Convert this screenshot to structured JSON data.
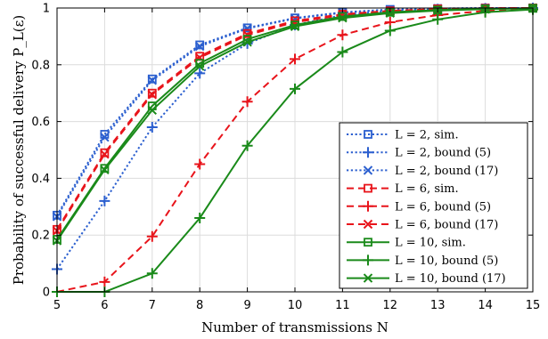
{
  "chart_data": {
    "type": "line",
    "xlabel": "Number of transmissions N",
    "ylabel": "Probability of successful delivery P_L(ε)",
    "xlim": [
      5,
      15
    ],
    "ylim": [
      0,
      1
    ],
    "x_ticks": [
      "5",
      "6",
      "7",
      "8",
      "9",
      "10",
      "11",
      "12",
      "13",
      "14",
      "15"
    ],
    "y_ticks": [
      "0",
      "0.2",
      "0.4",
      "0.6",
      "0.8",
      "1"
    ],
    "grid": true,
    "legend_position": "bottom-right",
    "x": [
      5,
      6,
      7,
      8,
      9,
      10,
      11,
      12,
      13,
      14,
      15
    ],
    "series": [
      {
        "name": "L = 2, sim.",
        "color": "#2b5fcf",
        "style": "dotted",
        "marker": "square",
        "values": [
          0.27,
          0.555,
          0.75,
          0.87,
          0.93,
          0.965,
          0.985,
          0.995,
          0.998,
          1.0,
          1.0
        ]
      },
      {
        "name": "L = 2, bound (5)",
        "color": "#2b5fcf",
        "style": "dotted",
        "marker": "plus",
        "values": [
          0.08,
          0.32,
          0.58,
          0.77,
          0.875,
          0.94,
          0.975,
          0.99,
          0.996,
          0.999,
          1.0
        ]
      },
      {
        "name": "L = 2, bound (17)",
        "color": "#2b5fcf",
        "style": "dotted",
        "marker": "x",
        "values": [
          0.265,
          0.545,
          0.745,
          0.865,
          0.928,
          0.963,
          0.983,
          0.994,
          0.998,
          1.0,
          1.0
        ]
      },
      {
        "name": "L = 6, sim.",
        "color": "#e8141b",
        "style": "dashed",
        "marker": "square",
        "values": [
          0.22,
          0.49,
          0.7,
          0.83,
          0.91,
          0.955,
          0.978,
          0.99,
          0.997,
          0.999,
          1.0
        ]
      },
      {
        "name": "L = 6, bound (5)",
        "color": "#e8141b",
        "style": "dashed",
        "marker": "plus",
        "values": [
          0.0,
          0.035,
          0.195,
          0.45,
          0.67,
          0.82,
          0.905,
          0.95,
          0.975,
          0.99,
          0.995
        ]
      },
      {
        "name": "L = 6, bound (17)",
        "color": "#e8141b",
        "style": "dashed",
        "marker": "x",
        "values": [
          0.215,
          0.485,
          0.695,
          0.825,
          0.905,
          0.95,
          0.975,
          0.988,
          0.995,
          0.999,
          1.0
        ]
      },
      {
        "name": "L = 10, sim.",
        "color": "#1a8a1a",
        "style": "solid",
        "marker": "square",
        "values": [
          0.185,
          0.435,
          0.655,
          0.805,
          0.89,
          0.94,
          0.97,
          0.985,
          0.993,
          0.997,
          0.999
        ]
      },
      {
        "name": "L = 10, bound (5)",
        "color": "#1a8a1a",
        "style": "solid",
        "marker": "plus",
        "values": [
          0.0,
          0.0,
          0.065,
          0.26,
          0.515,
          0.715,
          0.845,
          0.92,
          0.96,
          0.985,
          0.995
        ]
      },
      {
        "name": "L = 10, bound (17)",
        "color": "#1a8a1a",
        "style": "solid",
        "marker": "x",
        "values": [
          0.18,
          0.43,
          0.64,
          0.795,
          0.88,
          0.935,
          0.965,
          0.982,
          0.991,
          0.996,
          0.999
        ]
      }
    ]
  }
}
